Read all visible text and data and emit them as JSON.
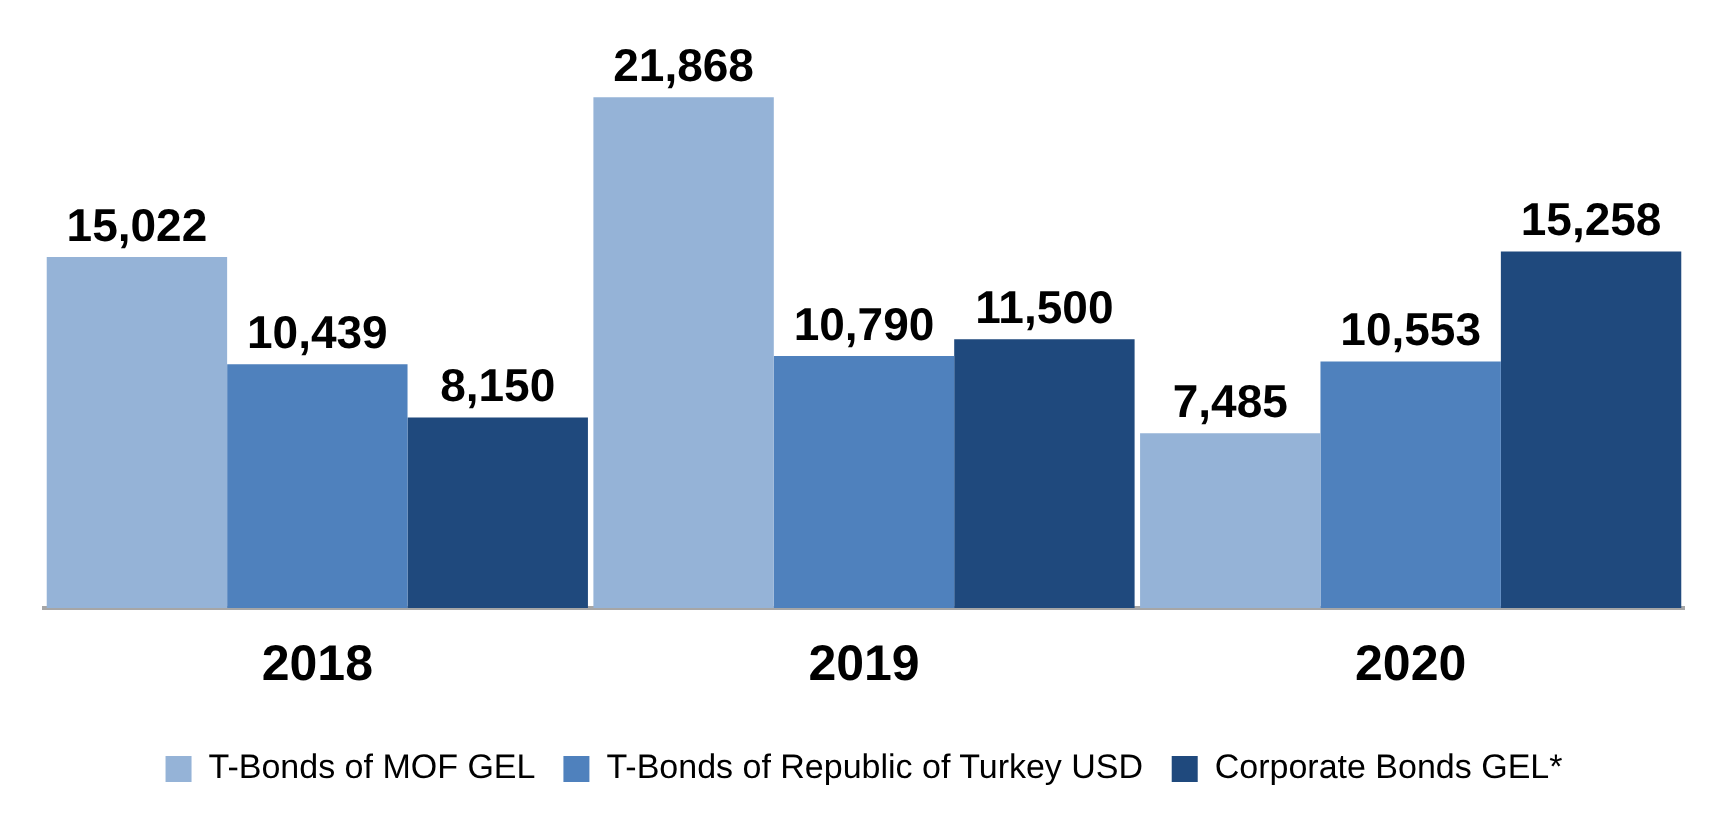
{
  "chart_data": {
    "type": "bar",
    "categories": [
      "2018",
      "2019",
      "2020"
    ],
    "series": [
      {
        "name": "T-Bonds of MOF GEL",
        "color": "#95b3d7",
        "values": [
          15022,
          21868,
          7485
        ],
        "value_labels": [
          "15,022",
          "21,868",
          "7,485"
        ]
      },
      {
        "name": "T-Bonds of Republic of Turkey USD",
        "color": "#4f81bd",
        "values": [
          10439,
          10790,
          10553
        ],
        "value_labels": [
          "10,439",
          "10,790",
          "10,553"
        ]
      },
      {
        "name": "Corporate Bonds GEL*",
        "color": "#1f497d",
        "values": [
          8150,
          11500,
          15258
        ],
        "value_labels": [
          "8,150",
          "11,500",
          "15,258"
        ]
      }
    ],
    "tick_labels": "x",
    "legend": "bottom",
    "grid": false
  }
}
